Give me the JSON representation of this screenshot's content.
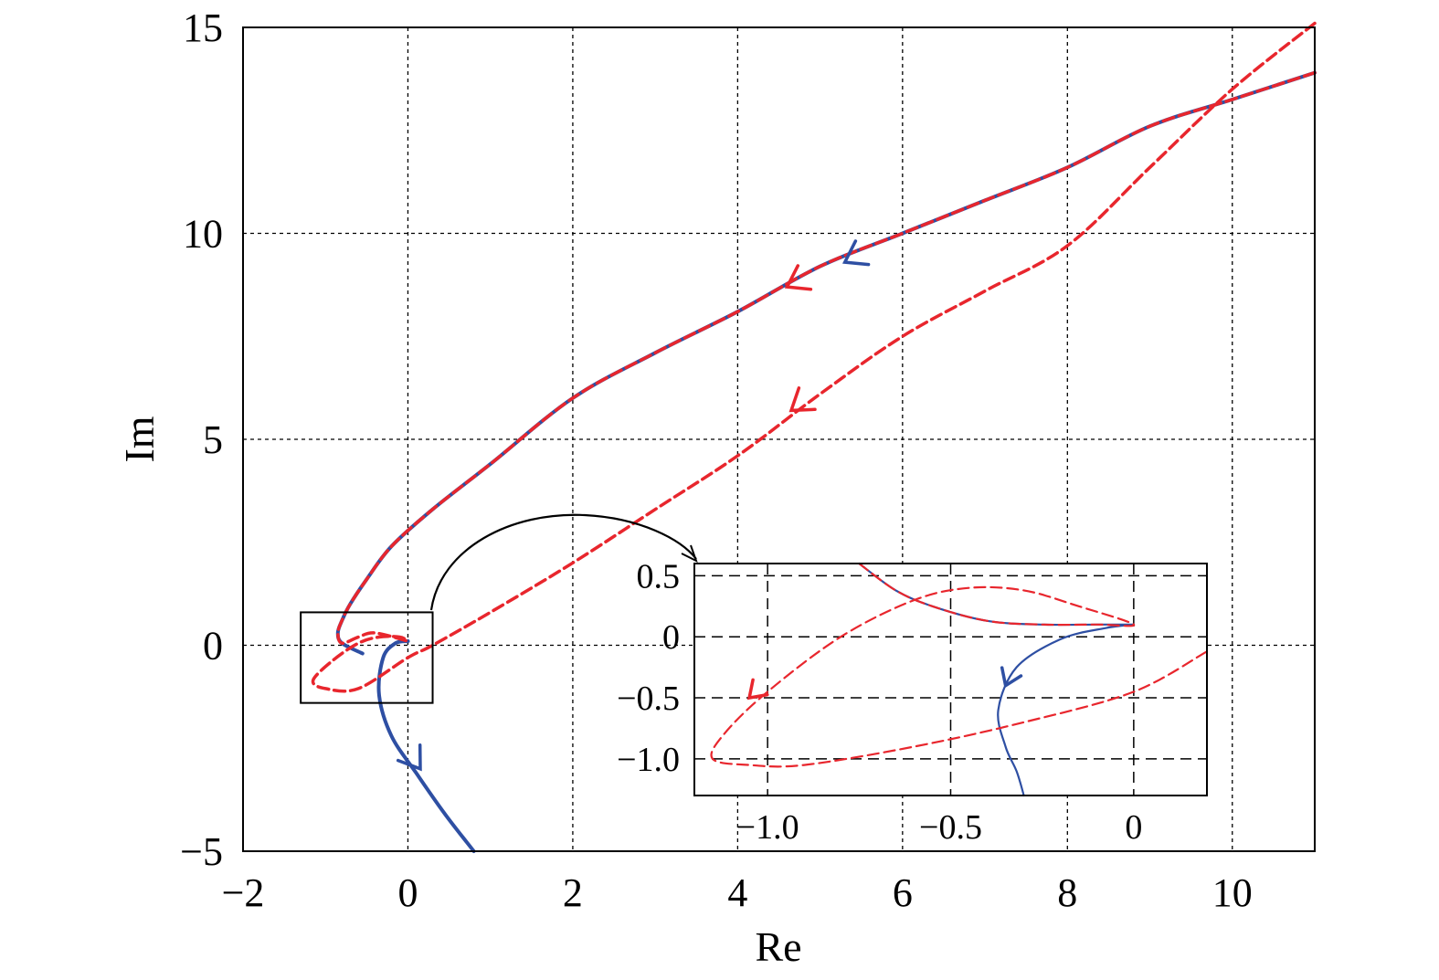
{
  "chart_data": [
    {
      "type": "line",
      "title": "",
      "xlabel": "Re",
      "ylabel": "Im",
      "xlim": [
        -2,
        11
      ],
      "ylim": [
        -5,
        15
      ],
      "xticks": [
        -2,
        0,
        2,
        4,
        6,
        8,
        10
      ],
      "yticks": [
        -5,
        0,
        5,
        10,
        15
      ],
      "xtick_labels": [
        "−2",
        "0",
        "2",
        "4",
        "6",
        "8",
        "10"
      ],
      "ytick_labels": [
        "−5",
        "0",
        "5",
        "10",
        "15"
      ],
      "grid": true,
      "colors": {
        "blue": "#2e4fa3",
        "red": "#e8262d"
      },
      "series": [
        {
          "style": "solid-blue",
          "x": [
            11.0,
            10.0,
            9.0,
            8.0,
            7.0,
            6.0,
            5.0,
            4.0,
            3.0,
            2.0,
            1.0,
            0.3,
            -0.2,
            -0.5,
            -0.7,
            -0.8,
            -0.85,
            -0.8,
            -0.55
          ],
          "y": [
            13.9,
            13.25,
            12.6,
            11.6,
            10.8,
            10.0,
            9.2,
            8.1,
            7.1,
            6.0,
            4.4,
            3.3,
            2.4,
            1.6,
            1.0,
            0.6,
            0.3,
            0.05,
            -0.2
          ]
        },
        {
          "style": "solid-blue",
          "x": [
            0.0,
            -0.15,
            -0.3,
            -0.35,
            -0.2,
            0.1,
            0.45,
            0.8
          ],
          "y": [
            0.1,
            0.05,
            -0.3,
            -1.2,
            -2.2,
            -3.1,
            -4.1,
            -5.0
          ]
        },
        {
          "style": "dashed-red",
          "x": [
            11.0,
            10.0,
            9.0,
            8.0,
            7.0,
            6.0,
            5.0,
            4.0,
            3.0,
            2.0,
            1.0,
            0.3,
            -0.2,
            -0.5,
            -0.7,
            -0.8,
            -0.85,
            -0.8,
            -0.6,
            -0.4,
            0.0
          ],
          "y": [
            13.9,
            13.25,
            12.6,
            11.6,
            10.8,
            10.0,
            9.2,
            8.1,
            7.1,
            6.0,
            4.4,
            3.3,
            2.4,
            1.6,
            1.0,
            0.6,
            0.3,
            0.05,
            0.2,
            0.3,
            0.1
          ]
        },
        {
          "style": "dashed-red",
          "x": [
            11.0,
            10.0,
            9.0,
            8.0,
            7.0,
            6.0,
            5.0,
            4.0,
            3.0,
            2.0,
            1.0,
            0.3,
            0.0,
            -0.6,
            -1.0,
            -1.15,
            -0.9,
            -0.6,
            -0.35,
            -0.1,
            0.0
          ],
          "y": [
            15.1,
            13.5,
            11.6,
            9.7,
            8.6,
            7.5,
            6.1,
            4.6,
            3.3,
            2.0,
            0.8,
            0.0,
            -0.3,
            -1.05,
            -1.05,
            -0.85,
            -0.35,
            0.05,
            0.2,
            0.2,
            0.1
          ]
        }
      ],
      "arrows": [
        {
          "color": "blue",
          "x": 5.3,
          "y": 9.3,
          "dir": "along-curve"
        },
        {
          "color": "red",
          "x": 4.6,
          "y": 8.7,
          "dir": "along-curve"
        },
        {
          "color": "red",
          "x": 4.65,
          "y": 5.7,
          "dir": "along-curve"
        },
        {
          "color": "blue",
          "x": 0.15,
          "y": -3.0,
          "dir": "along-curve"
        }
      ],
      "zoom_box": {
        "x": [
          -1.3,
          0.3
        ],
        "y": [
          -1.4,
          0.8
        ]
      }
    },
    {
      "type": "line",
      "title": "",
      "xlabel": "",
      "ylabel": "",
      "xlim": [
        -1.2,
        0.2
      ],
      "ylim": [
        -1.3,
        0.6
      ],
      "xticks": [
        -1.0,
        -0.5,
        0.0
      ],
      "yticks": [
        -1.0,
        -0.5,
        0.0,
        0.5
      ],
      "xtick_labels": [
        "−1.0",
        "−0.5",
        "0"
      ],
      "ytick_labels": [
        "−1.0",
        "−0.5",
        "0",
        "0.5"
      ],
      "grid": true,
      "series": [
        {
          "style": "solid-blue",
          "x": [
            -0.75,
            -0.65,
            -0.55,
            -0.4,
            -0.25,
            -0.1,
            0.0
          ],
          "y": [
            0.6,
            0.38,
            0.25,
            0.13,
            0.1,
            0.1,
            0.1
          ]
        },
        {
          "style": "solid-blue",
          "x": [
            0.0,
            -0.08,
            -0.2,
            -0.32,
            -0.37,
            -0.35,
            -0.32,
            -0.3
          ],
          "y": [
            0.1,
            0.07,
            -0.02,
            -0.25,
            -0.6,
            -0.9,
            -1.1,
            -1.3
          ]
        },
        {
          "style": "dashed-red",
          "x": [
            -0.75,
            -0.65,
            -0.55,
            -0.4,
            -0.25,
            -0.1,
            0.0,
            -0.15,
            -0.3,
            -0.45,
            -0.6,
            -0.8,
            -1.0,
            -1.12,
            -1.15,
            -1.05,
            -0.9,
            -0.6,
            -0.3,
            0.0,
            0.2
          ],
          "y": [
            0.6,
            0.38,
            0.25,
            0.13,
            0.1,
            0.1,
            0.1,
            0.25,
            0.38,
            0.4,
            0.3,
            0.0,
            -0.45,
            -0.8,
            -1.0,
            -1.05,
            -1.05,
            -0.9,
            -0.7,
            -0.45,
            -0.12
          ]
        }
      ],
      "arrows": [
        {
          "color": "red",
          "x": -1.05,
          "y": -0.5,
          "dir": "along-curve"
        },
        {
          "color": "blue",
          "x": -0.35,
          "y": -0.4,
          "dir": "along-curve"
        }
      ]
    }
  ]
}
